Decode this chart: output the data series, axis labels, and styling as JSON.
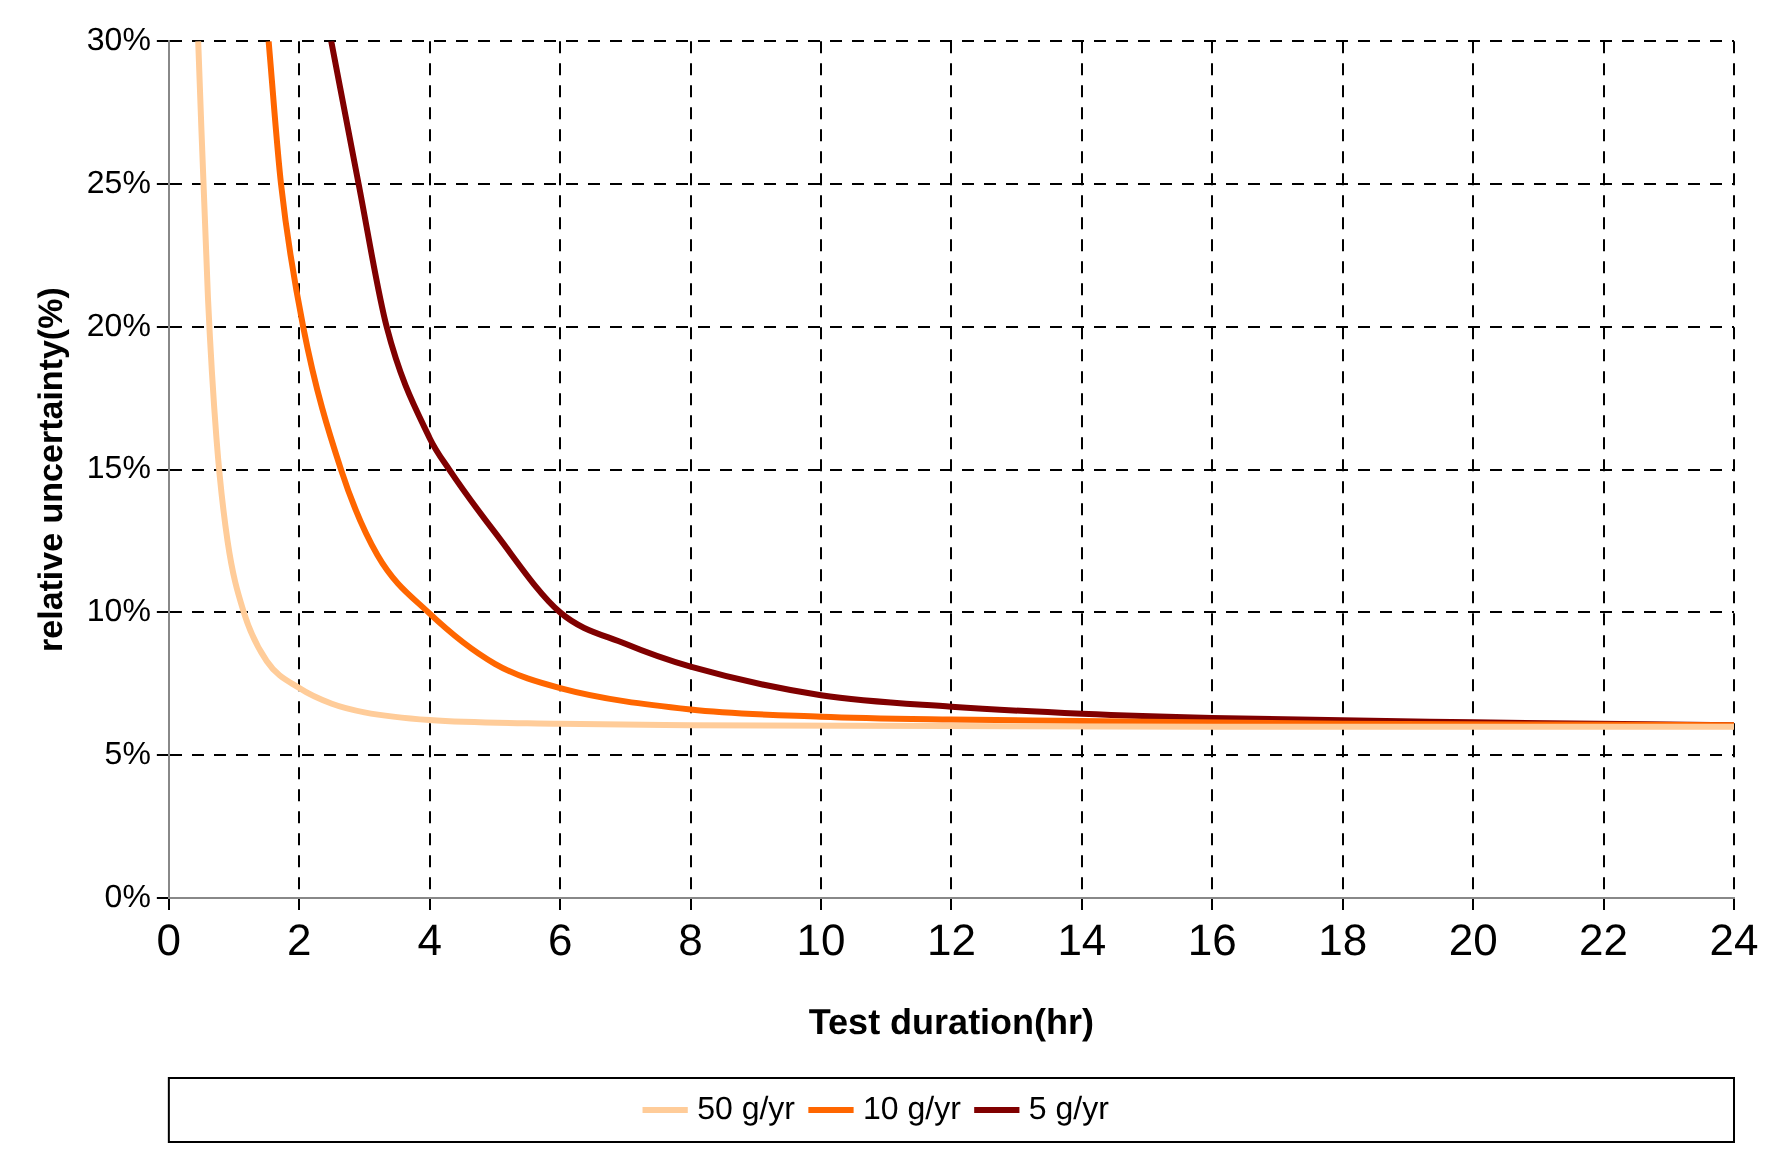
{
  "chart_data": {
    "type": "line",
    "xlabel": "Test duration(hr)",
    "ylabel": "relative uncertainty(%)",
    "xlim": [
      0,
      24
    ],
    "xticks": [
      0,
      2,
      4,
      6,
      8,
      10,
      12,
      14,
      16,
      18,
      20,
      22,
      24
    ],
    "ylim": [
      0,
      30
    ],
    "yticks": [
      {
        "value": 0,
        "label": "0%"
      },
      {
        "value": 5,
        "label": "5%"
      },
      {
        "value": 10,
        "label": "10%"
      },
      {
        "value": 15,
        "label": "15%"
      },
      {
        "value": 20,
        "label": "20%"
      },
      {
        "value": 25,
        "label": "25%"
      },
      {
        "value": 30,
        "label": "30%"
      }
    ],
    "grid": true,
    "legend": "bottom",
    "marker": "none",
    "line_style": "solid",
    "series": [
      {
        "name": "50 g/yr",
        "color": "#ffcc99",
        "x": [
          0.45,
          0.6,
          0.73,
          0.9,
          1.15,
          1.5,
          2,
          2.5,
          3,
          4,
          6,
          8,
          12,
          16,
          24
        ],
        "values": [
          30,
          21,
          16.1,
          12.5,
          10,
          8.3,
          7.35,
          6.8,
          6.5,
          6.23,
          6.1,
          6.05,
          6.02,
          6.0,
          6.0
        ]
      },
      {
        "name": "10 g/yr",
        "color": "#ff6600",
        "x": [
          1.53,
          1.72,
          2.06,
          2.64,
          3.2,
          3.98,
          5,
          6,
          8,
          10,
          12,
          14,
          18,
          24
        ],
        "values": [
          30,
          25,
          20,
          15,
          12,
          10,
          8.2,
          7.35,
          6.6,
          6.35,
          6.25,
          6.2,
          6.1,
          6.05
        ]
      },
      {
        "name": "5 g/yr",
        "color": "#800000",
        "x": [
          2.49,
          2.91,
          3.34,
          4,
          4.3,
          5,
          6,
          7,
          8,
          10,
          12,
          14,
          16,
          20,
          24
        ],
        "values": [
          30,
          25,
          20,
          16.1,
          15,
          12.8,
          10,
          8.9,
          8.1,
          7.1,
          6.7,
          6.45,
          6.3,
          6.15,
          6.05
        ]
      }
    ]
  }
}
